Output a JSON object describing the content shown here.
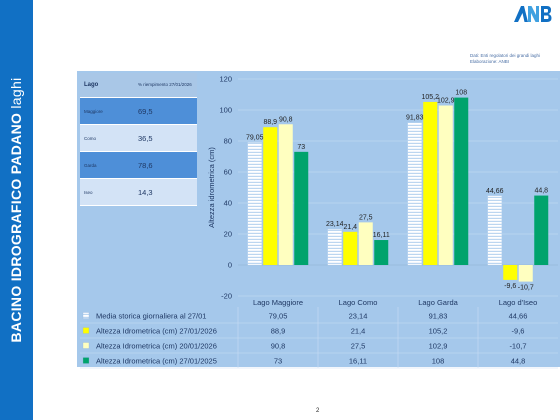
{
  "side_title_bold": "BACINO IDROGRAFICO PADANO",
  "side_title_light": "laghi",
  "logo_text": "ANBI",
  "source_lines": [
    "Dati: Enti regolatori dei grandi laghi",
    "Elaborazione: ANBI"
  ],
  "table": {
    "headers": [
      "Lago",
      "% riempimento 27/01/2026"
    ],
    "rows": [
      {
        "lake": "Maggiore",
        "value": "69,5"
      },
      {
        "lake": "Como",
        "value": "36,5"
      },
      {
        "lake": "Garda",
        "value": "78,6"
      },
      {
        "lake": "Iseo",
        "value": "14,3"
      }
    ]
  },
  "page_number": "2",
  "colors": {
    "panel_bg": "#a5c8eb",
    "side_band": "#1170c4",
    "media": "#eef6fd",
    "s2026": "#ffff00",
    "s20_01": "#ffffc0",
    "s2025": "#00a36c"
  },
  "chart_data": {
    "type": "bar",
    "categories": [
      "Lago Maggiore",
      "Lago Como",
      "Lago Garda",
      "Lago d'Iseo"
    ],
    "ylabel": "Altezza idrometrica (cm)",
    "ylim": [
      -20,
      120
    ],
    "yticks": [
      -20,
      0,
      20,
      40,
      60,
      80,
      100,
      120
    ],
    "grid": true,
    "legend": "table-below",
    "series": [
      {
        "name": "Media storica giornaliera al 27/01",
        "values": [
          79.05,
          23.14,
          91.83,
          44.66
        ],
        "labels": [
          "79,05",
          "23,14",
          "91,83",
          "44,66"
        ],
        "color": "#eef6fd",
        "pattern": "stripes"
      },
      {
        "name": "Altezza Idrometrica (cm) 27/01/2026",
        "values": [
          88.9,
          21.4,
          105.2,
          -9.6
        ],
        "labels": [
          "88,9",
          "21,4",
          "105,2",
          "-9,6"
        ],
        "color": "#ffff00"
      },
      {
        "name": "Altezza Idrometrica (cm) 20/01/2026",
        "values": [
          90.8,
          27.5,
          102.9,
          -10.7
        ],
        "labels": [
          "90,8",
          "27,5",
          "102,9",
          "-10,7"
        ],
        "color": "#ffffc0"
      },
      {
        "name": "Altezza Idrometrica (cm) 27/01/2025",
        "values": [
          73,
          16.11,
          108,
          44.8
        ],
        "labels": [
          "73",
          "16,11",
          "108",
          "44,8"
        ],
        "color": "#00a36c"
      }
    ]
  }
}
